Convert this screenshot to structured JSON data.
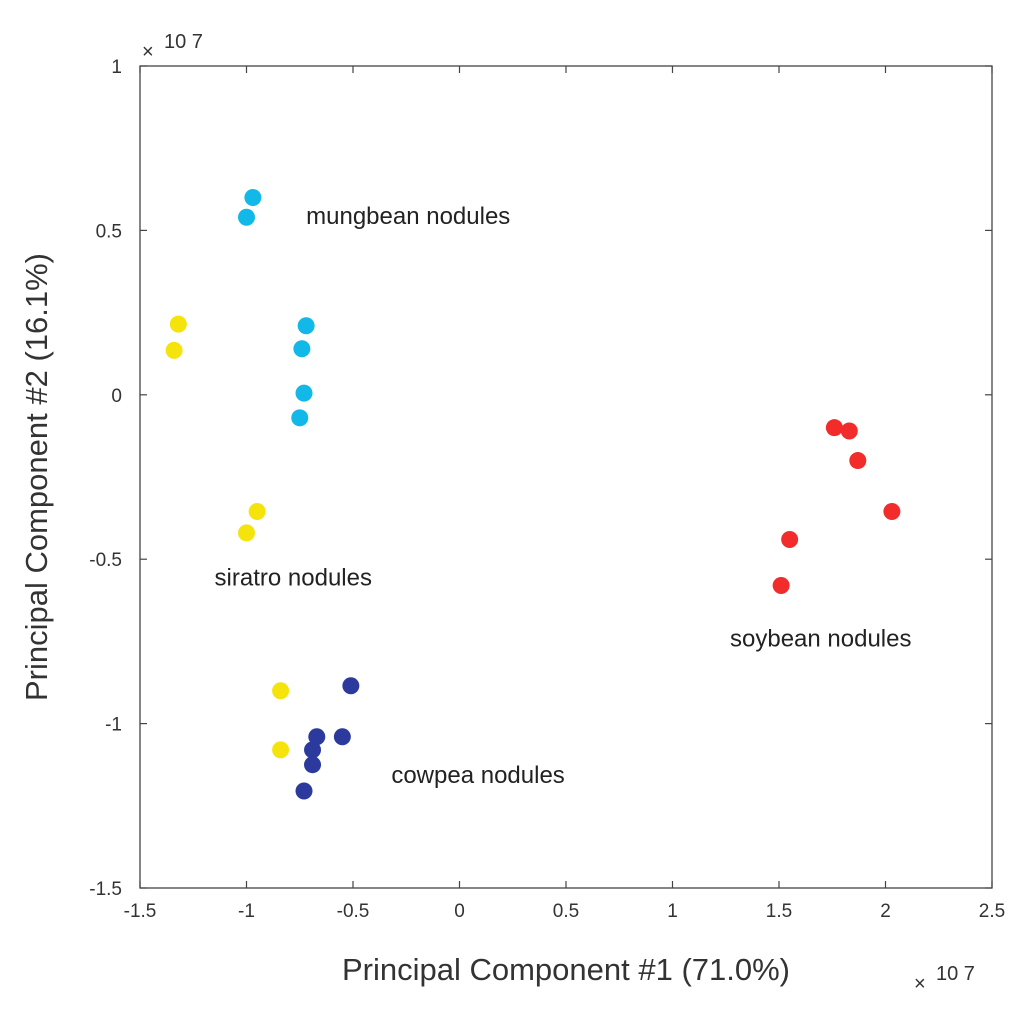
{
  "chart_data": {
    "type": "scatter",
    "xlabel": "Principal Component #1 (71.0%)",
    "ylabel": "Principal Component #2 (16.1%)",
    "xlim": [
      -1.5,
      2.5
    ],
    "ylim": [
      -1.5,
      1
    ],
    "x_ticks": [
      -1.5,
      -1,
      -0.5,
      0,
      0.5,
      1,
      1.5,
      2,
      2.5
    ],
    "y_ticks": [
      -1.5,
      -1,
      -0.5,
      0,
      0.5,
      1
    ],
    "x_multiplier": "10 7",
    "y_multiplier": "10 7",
    "grid": false,
    "series": [
      {
        "color": "#12b8e8",
        "x": [
          -0.97,
          -1.0,
          -0.72,
          -0.74,
          -0.73,
          -0.75
        ],
        "y": [
          0.6,
          0.54,
          0.21,
          0.14,
          0.005,
          -0.07
        ]
      },
      {
        "color": "#f5e40c",
        "x": [
          -1.32,
          -1.34,
          -0.95,
          -1.0,
          -0.84,
          -0.84
        ],
        "y": [
          0.215,
          0.135,
          -0.355,
          -0.42,
          -0.9,
          -1.08
        ]
      },
      {
        "color": "#2b3a9c",
        "x": [
          -0.51,
          -0.55,
          -0.67,
          -0.69,
          -0.69,
          -0.73
        ],
        "y": [
          -0.885,
          -1.04,
          -1.04,
          -1.08,
          -1.125,
          -1.205
        ]
      },
      {
        "color": "#f22b2b",
        "x": [
          1.76,
          1.83,
          1.87,
          2.03,
          1.55,
          1.51
        ],
        "y": [
          -0.1,
          -0.11,
          -0.2,
          -0.355,
          -0.44,
          -0.58
        ]
      }
    ],
    "annotations": [
      {
        "text": "mungbean nodules",
        "x": -0.72,
        "y": 0.52
      },
      {
        "text": "siratro nodules",
        "x": -1.15,
        "y": -0.58
      },
      {
        "text": "soybean nodules",
        "x": 1.27,
        "y": -0.765
      },
      {
        "text": "cowpea nodules",
        "x": -0.32,
        "y": -1.18
      }
    ]
  }
}
